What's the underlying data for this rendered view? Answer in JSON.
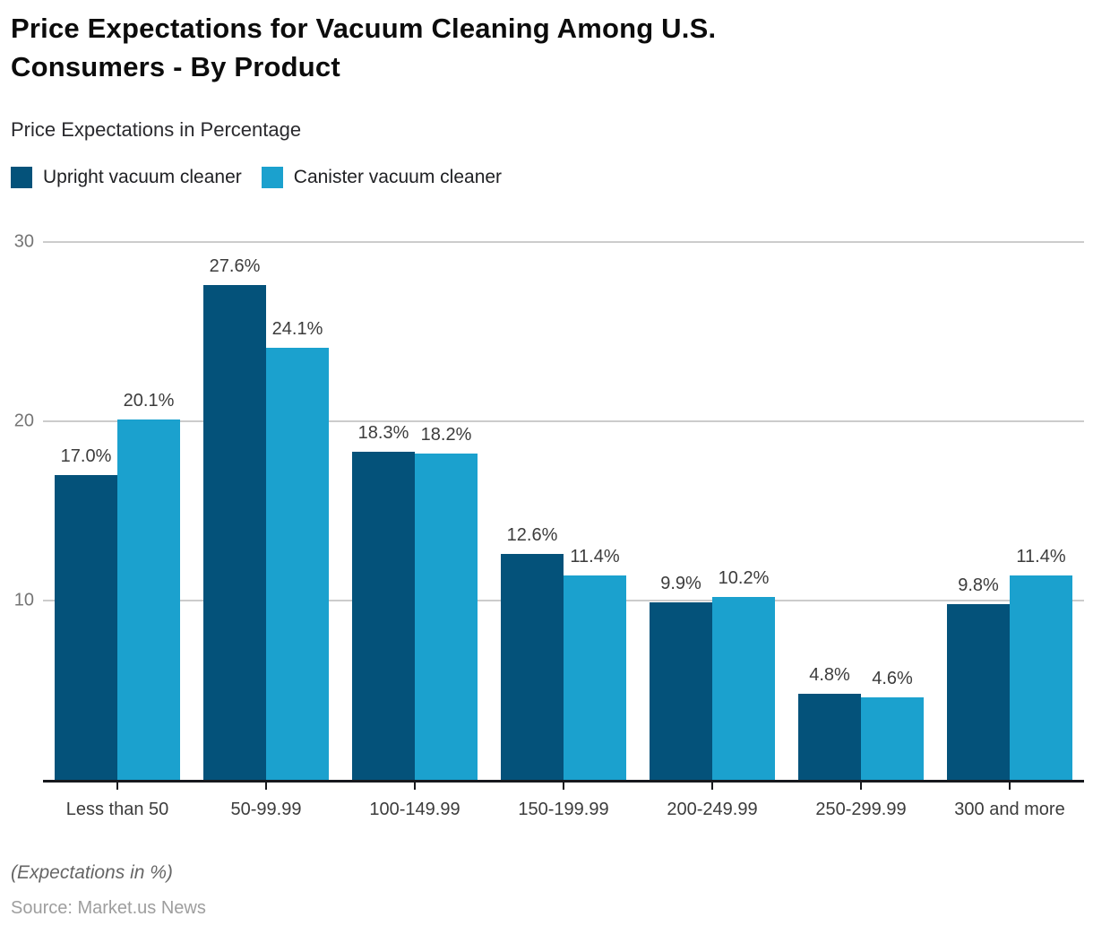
{
  "header": {
    "title_lines": {
      "0": "Price Expectations for Vacuum Cleaning Among U.S.",
      "1": "Consumers - By Product"
    },
    "subtitle": "Price Expectations in Percentage"
  },
  "chart_data": {
    "type": "bar",
    "title": "Price Expectations for Vacuum Cleaning Among U.S. Consumers - By Product",
    "subtitle": "Price Expectations in Percentage",
    "categories": [
      "Less than 50",
      "50-99.99",
      "100-149.99",
      "150-199.99",
      "200-249.99",
      "250-299.99",
      "300 and more"
    ],
    "series": [
      {
        "name": "Upright vacuum cleaner",
        "color": "#04527A",
        "values": [
          17.0,
          27.6,
          18.3,
          12.6,
          9.9,
          4.8,
          9.8
        ]
      },
      {
        "name": "Canister vacuum cleaner",
        "color": "#1BA1CE",
        "values": [
          20.1,
          24.1,
          18.2,
          11.4,
          10.2,
          4.6,
          11.4
        ]
      }
    ],
    "value_suffix": "%",
    "value_decimals": 1,
    "xlabel": "",
    "ylabel": "",
    "ylim": [
      0,
      30
    ],
    "yticks": [
      10,
      20,
      30
    ],
    "grid": true,
    "gridline_color": "#cccccc",
    "axis_color": "#17191d",
    "legend_position": "top-left"
  },
  "footer": {
    "note": "(Expectations in %)",
    "source": "Source: Market.us News"
  }
}
